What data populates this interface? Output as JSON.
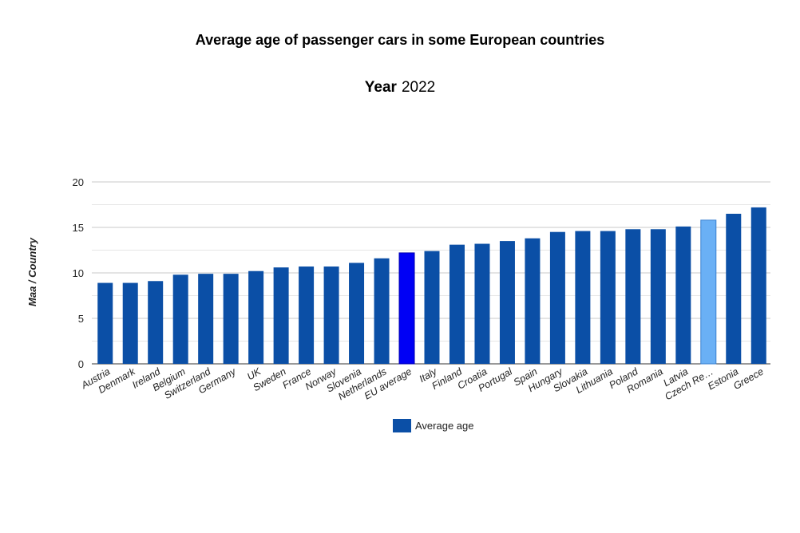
{
  "chart_data": {
    "type": "bar",
    "title": "Average age of passenger cars in some European countries",
    "subtitle_key": "Year",
    "subtitle_value": "2022",
    "ylabel": "Maa / Country",
    "xlabel": "",
    "ylim": [
      0,
      20
    ],
    "yticks": [
      0,
      5,
      10,
      15,
      20
    ],
    "grid": true,
    "legend_position": "bottom",
    "categories": [
      "Austria",
      "Denmark",
      "Ireland",
      "Belgium",
      "Switzerland",
      "Germany",
      "UK",
      "Sweden",
      "France",
      "Norway",
      "Slovenia",
      "Netherlands",
      "EU average",
      "Italy",
      "Finland",
      "Croatia",
      "Portugal",
      "Spain",
      "Hungary",
      "Slovakia",
      "Lithuania",
      "Poland",
      "Romania",
      "Latvia",
      "Czech Re…",
      "Estonia",
      "Greece"
    ],
    "series": [
      {
        "name": "Average age",
        "color": "#0b4fa6",
        "values": [
          8.9,
          8.9,
          9.1,
          9.8,
          9.9,
          9.9,
          10.2,
          10.6,
          10.7,
          10.7,
          11.1,
          11.6,
          12.2,
          12.4,
          13.1,
          13.2,
          13.5,
          13.8,
          14.5,
          14.6,
          14.6,
          14.8,
          14.8,
          15.1,
          15.8,
          16.5,
          17.2
        ]
      }
    ],
    "highlight_colors": {
      "EU average": "#0000f5",
      "Czech Re…": "#6ab0f5"
    }
  }
}
